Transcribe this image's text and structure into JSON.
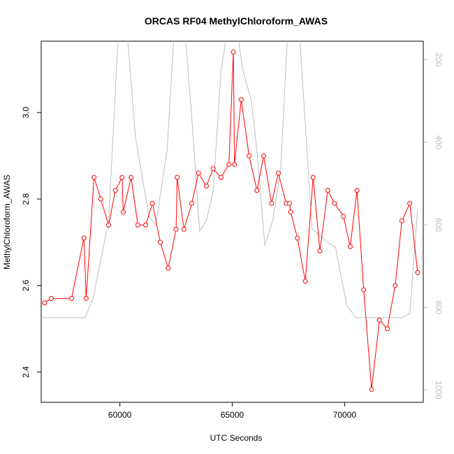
{
  "chart_data": {
    "type": "line",
    "title": "ORCAS RF04 MethylChloroform_AWAS",
    "xlabel": "UTC Seconds",
    "ylabel": "MethylChloroform_AWAS",
    "xlim": [
      56500,
      73500
    ],
    "ylim": [
      2.33,
      3.165
    ],
    "x_ticks": [
      60000,
      65000,
      70000
    ],
    "y_ticks": [
      2.4,
      2.6,
      2.8,
      3.0
    ],
    "y2lim": [
      1030,
      155
    ],
    "y2_ticks": [
      200,
      400,
      600,
      800,
      1000
    ],
    "grid": false,
    "series": [
      {
        "color": "#ff0000",
        "style": "line+markers",
        "x": [
          56650,
          56950,
          57850,
          58400,
          58500,
          58850,
          59150,
          59500,
          59800,
          60100,
          60150,
          60500,
          60800,
          61150,
          61450,
          61800,
          62150,
          62500,
          62550,
          62850,
          63200,
          63500,
          63850,
          64150,
          64500,
          64850,
          65050,
          65100,
          65400,
          65750,
          66100,
          66400,
          66750,
          67050,
          67400,
          67550,
          67600,
          67900,
          68250,
          68600,
          68900,
          69250,
          69550,
          69950,
          70250,
          70550,
          70850,
          71200,
          71550,
          71900,
          72250,
          72550,
          72900,
          73250
        ],
        "y": [
          2.56,
          2.57,
          2.57,
          2.71,
          2.57,
          2.85,
          2.8,
          2.74,
          2.82,
          2.85,
          2.77,
          2.85,
          2.74,
          2.74,
          2.79,
          2.7,
          2.64,
          2.73,
          2.85,
          2.73,
          2.79,
          2.86,
          2.83,
          2.87,
          2.85,
          2.88,
          3.14,
          2.88,
          3.03,
          2.9,
          2.82,
          2.9,
          2.79,
          2.86,
          2.79,
          2.79,
          2.77,
          2.71,
          2.61,
          2.85,
          2.68,
          2.82,
          2.79,
          2.76,
          2.69,
          2.82,
          2.59,
          2.36,
          2.52,
          2.5,
          2.6,
          2.75,
          2.79,
          2.63
        ]
      },
      {
        "color": "#bebebe",
        "axis": "right",
        "style": "line",
        "x": [
          56500,
          58450,
          58800,
          59500,
          59950,
          60300,
          60700,
          61300,
          61600,
          62100,
          62450,
          62850,
          63200,
          63550,
          63850,
          64150,
          64500,
          64850,
          65150,
          65450,
          65850,
          66100,
          66450,
          66800,
          67150,
          67500,
          67950,
          68550,
          69300,
          69600,
          70100,
          70500,
          70900,
          71300,
          71700,
          72100,
          72550,
          72900,
          73250
        ],
        "y": [
          825,
          825,
          780,
          590,
          120,
          120,
          390,
          580,
          600,
          420,
          100,
          100,
          340,
          615,
          590,
          520,
          230,
          100,
          100,
          220,
          300,
          420,
          650,
          590,
          470,
          100,
          100,
          610,
          645,
          655,
          795,
          825,
          825,
          825,
          825,
          825,
          825,
          815,
          560
        ]
      }
    ]
  }
}
